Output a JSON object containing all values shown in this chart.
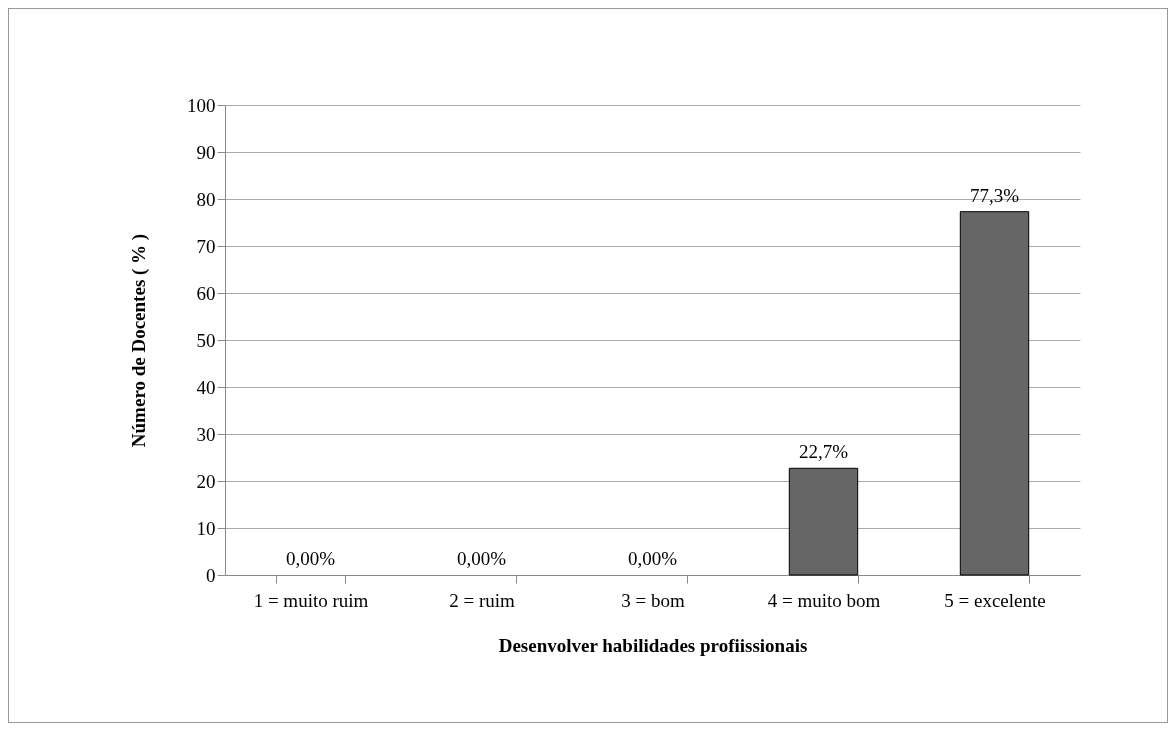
{
  "chart_data": {
    "type": "bar",
    "xlabel": "Desenvolver habilidades profiissionais",
    "ylabel": "Número de Docentes ( % )",
    "categories": [
      "1 = muito ruim",
      "2 = ruim",
      "3 = bom",
      "4 = muito bom",
      "5 = excelente"
    ],
    "values": [
      0,
      0,
      0,
      22.7,
      77.3
    ],
    "value_labels": [
      "0,00%",
      "0,00%",
      "0,00%",
      "22,7%",
      "77,3%"
    ],
    "color": "#666666",
    "ylim": [
      0,
      100
    ],
    "yticks": [
      0,
      10,
      20,
      30,
      40,
      50,
      60,
      70,
      80,
      90,
      100
    ],
    "grid": "y"
  }
}
